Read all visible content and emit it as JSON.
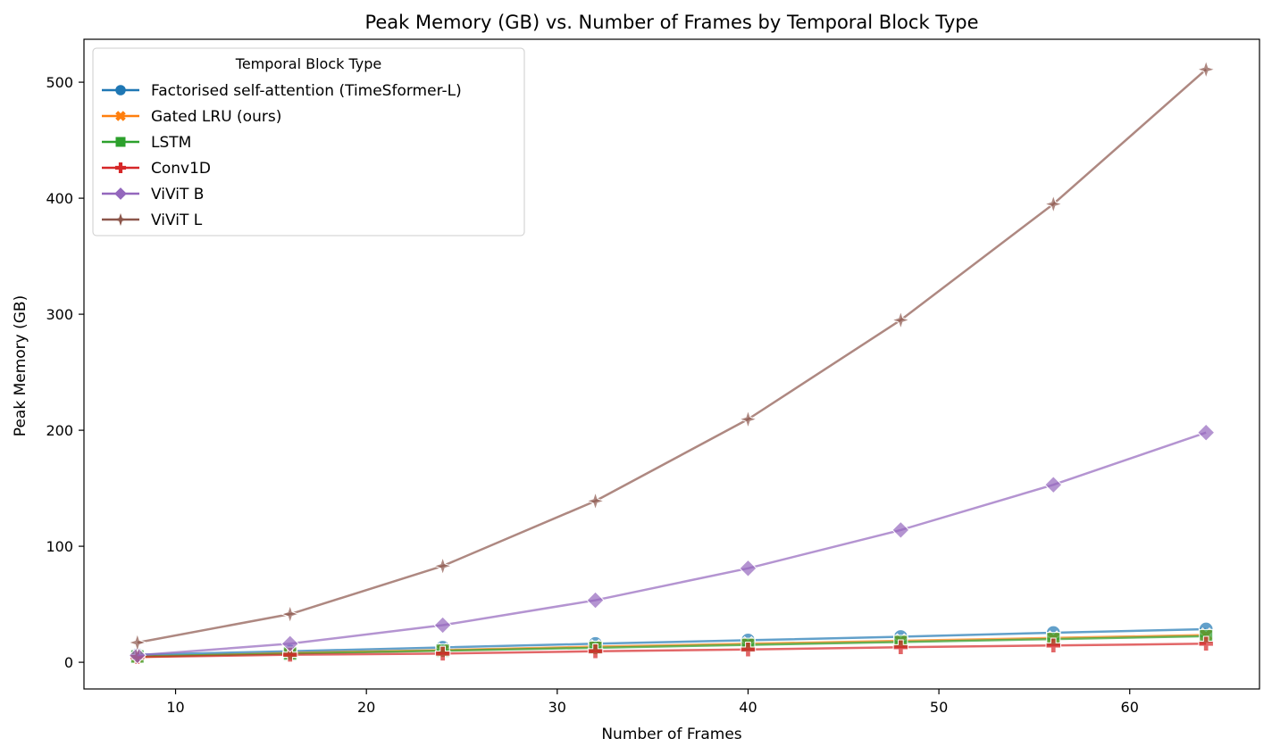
{
  "chart_data": {
    "type": "line",
    "title": "Peak Memory (GB) vs. Number of Frames by Temporal Block Type",
    "xlabel": "Number of Frames",
    "ylabel": "Peak Memory (GB)",
    "xlim": [
      5.2,
      66.8
    ],
    "ylim": [
      -23,
      537
    ],
    "xticks": [
      10,
      20,
      30,
      40,
      50,
      60
    ],
    "yticks": [
      0,
      100,
      200,
      300,
      400,
      500
    ],
    "grid": false,
    "legend": {
      "title": "Temporal Block Type",
      "placement": "top-left"
    },
    "x": [
      8,
      16,
      24,
      32,
      40,
      48,
      56,
      64
    ],
    "series": [
      {
        "name": "Factorised self-attention (TimeSformer-L)",
        "color": "#1f77b4",
        "marker": "circle",
        "values": [
          6.5,
          9.5,
          12.8,
          16,
          19,
          22,
          25.5,
          28.5
        ]
      },
      {
        "name": "Gated LRU (ours)",
        "color": "#ff7f0e",
        "marker": "x-filled",
        "values": [
          4.5,
          8,
          10.5,
          13.5,
          16,
          18.5,
          21,
          23.5
        ]
      },
      {
        "name": "LSTM",
        "color": "#2ca02c",
        "marker": "square",
        "values": [
          5,
          7.5,
          10,
          12.5,
          15,
          17.5,
          20,
          22.5
        ]
      },
      {
        "name": "Conv1D",
        "color": "#d62728",
        "marker": "plus-filled",
        "values": [
          4.5,
          6.5,
          7.5,
          9.5,
          11,
          13,
          14.5,
          16
        ]
      },
      {
        "name": "ViViT B",
        "color": "#9467bd",
        "marker": "diamond",
        "values": [
          6,
          16,
          32,
          53.5,
          81,
          114,
          153,
          198
        ]
      },
      {
        "name": "ViViT L",
        "color": "#8c564b",
        "marker": "star",
        "values": [
          17,
          41.5,
          83,
          139,
          209.5,
          295,
          395,
          511
        ]
      }
    ]
  }
}
